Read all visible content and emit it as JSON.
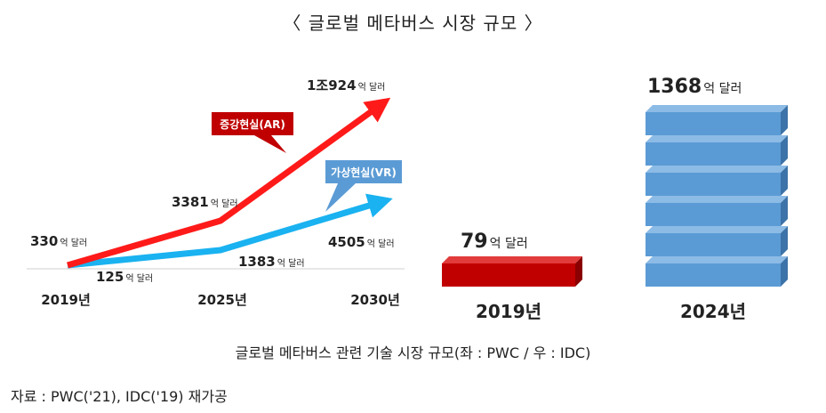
{
  "title": "〈 글로벌 메타버스 시장 규모 〉",
  "caption": "글로벌 메타버스 관련 기술 시장 규모(좌 : PWC / 우 : IDC)",
  "source": "자료 : PWC('21), IDC('19) 재가공",
  "colors": {
    "ar": "#ff1a1a",
    "vr": "#1ab2f0",
    "ar_tag": "#c00000",
    "vr_tag": "#5b9bd5",
    "bar2019": "#c00000",
    "bar2024": "#5b9bd5"
  },
  "chart_data": [
    {
      "type": "line",
      "categories": [
        "2019년",
        "2025년",
        "2030년"
      ],
      "series": [
        {
          "name": "증강현실(AR)",
          "values": [
            330,
            3381,
            10924
          ],
          "labels": [
            "330",
            "3381",
            "1조924"
          ]
        },
        {
          "name": "가상현실(VR)",
          "values": [
            125,
            1383,
            4505
          ],
          "labels": [
            "125",
            "1383",
            "4505"
          ]
        }
      ],
      "unit": "억 달러"
    },
    {
      "type": "bar",
      "categories": [
        "2019년",
        "2024년"
      ],
      "values": [
        79,
        1368
      ],
      "labels": [
        "79",
        "1368"
      ],
      "unit": "억 달러"
    }
  ]
}
